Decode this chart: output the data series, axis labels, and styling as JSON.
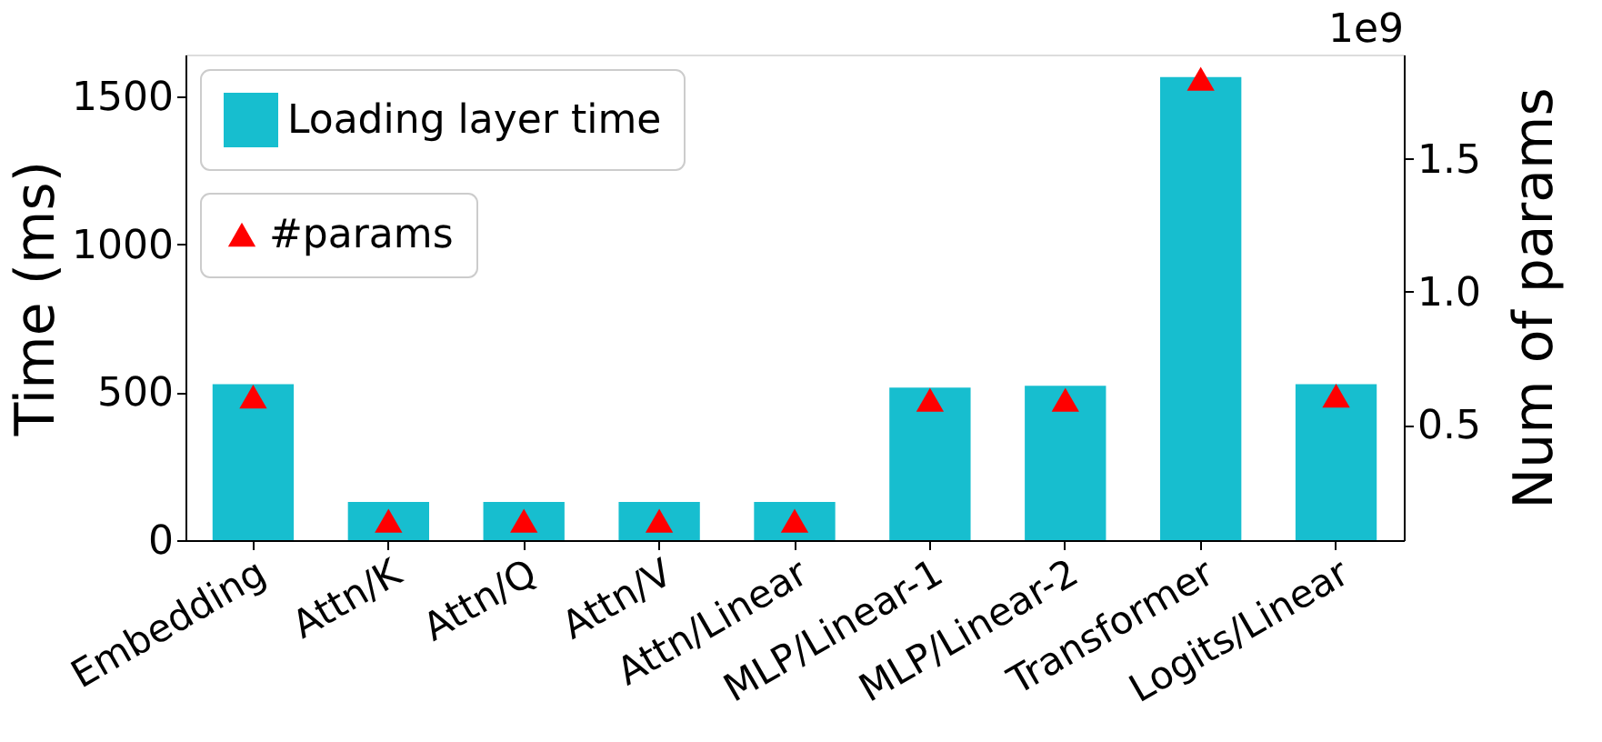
{
  "chart_data": {
    "type": "bar",
    "categories": [
      "Embedding",
      "Attn/K",
      "Attn/Q",
      "Attn/V",
      "Attn/Linear",
      "MLP/Linear-1",
      "MLP/Linear-2",
      "Transformer",
      "Logits/Linear"
    ],
    "series": [
      {
        "name": "Loading layer time",
        "color": "#17becf",
        "values": [
          528,
          129,
          129,
          129,
          129,
          516,
          522,
          1567,
          528
        ]
      },
      {
        "name": "#params",
        "type": "scatter",
        "axis": "y2",
        "marker": "triangle",
        "color": "#ff0000",
        "values": [
          0.607,
          0.141,
          0.141,
          0.141,
          0.141,
          0.595,
          0.595,
          1.8,
          0.61
        ]
      }
    ],
    "ylabel": "Time (ms)",
    "y2label": "Num of params",
    "ylim": [
      0,
      1643
    ],
    "yticks": [
      0,
      500,
      1000,
      1500
    ],
    "y2lim": [
      0.068,
      1.891
    ],
    "y2ticks": [
      0.5,
      {
        "value": 1.0,
        "label": "1.0"
      },
      1.5
    ],
    "annotations": [
      "1e9"
    ],
    "grid": false,
    "legend": "top left"
  }
}
